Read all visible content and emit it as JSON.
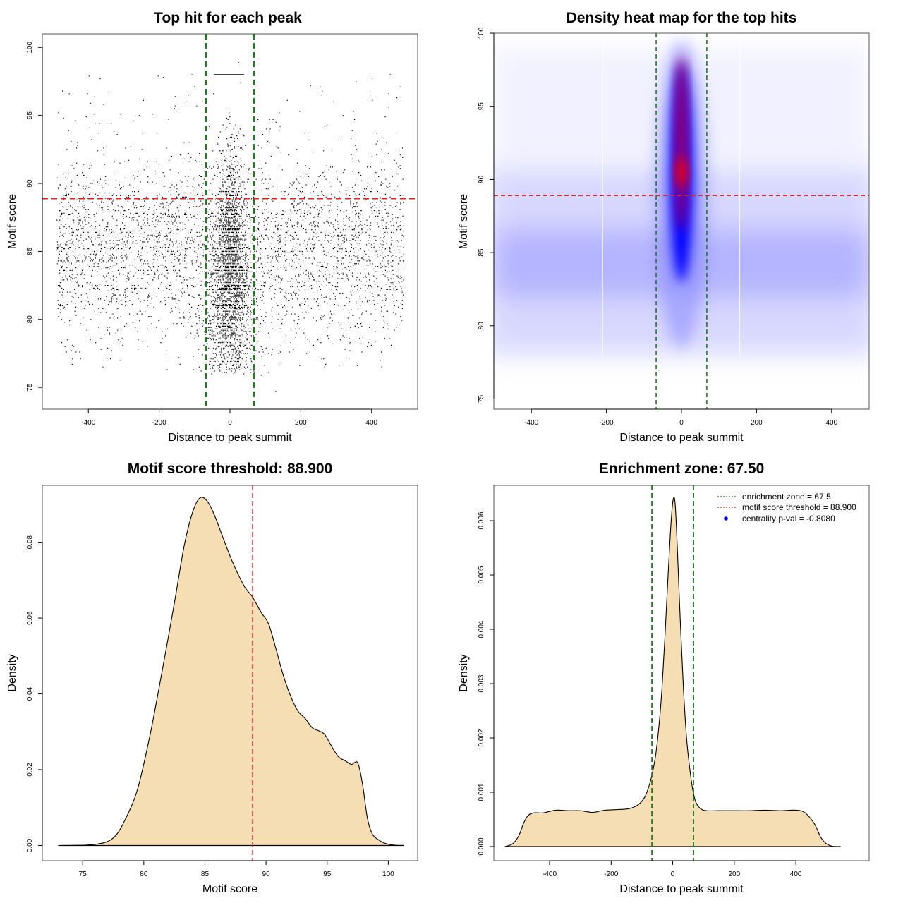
{
  "chart_data": [
    {
      "id": "top-hit-scatter",
      "type": "scatter",
      "title": "Top hit for each peak",
      "xlabel": "Distance to peak summit",
      "ylabel": "Motif score",
      "xlim": [
        -530,
        530
      ],
      "ylim": [
        73.4,
        101
      ],
      "xticks": [
        -400,
        -200,
        0,
        200,
        400
      ],
      "yticks": [
        75,
        80,
        85,
        90,
        95,
        100
      ],
      "x_range_of_points": [
        -490,
        490
      ],
      "background_score_distribution": {
        "center": 85,
        "spread": 3.2,
        "min": 74.7,
        "max": 99.8
      },
      "central_cluster": {
        "center_distance": 0,
        "spread": 18,
        "score_range": [
          76,
          99.9
        ]
      },
      "vlines": {
        "values": [
          -67.5,
          67.5
        ],
        "color": "#1e7b1e",
        "style": "dashed"
      },
      "hline": {
        "value": 88.9,
        "color": "#d62728",
        "style": "dashed"
      },
      "point_color": "#000000",
      "grid": false
    },
    {
      "id": "density-heatmap",
      "type": "heatmap",
      "title": "Density heat map for the top hits",
      "xlabel": "Distance to peak summit",
      "ylabel": "Motif score",
      "xlim": [
        -500,
        500
      ],
      "ylim": [
        74.3,
        100
      ],
      "xticks": [
        -400,
        -200,
        0,
        200,
        400
      ],
      "yticks": [
        75,
        80,
        85,
        90,
        95,
        100
      ],
      "colors": [
        "#ffffff",
        "#0000ff",
        "#ff0000"
      ],
      "hotspot": {
        "x": 0,
        "y_center": 90.5,
        "y_range": [
          83,
          98
        ]
      },
      "background_band": {
        "y_center": 84.3,
        "y_range": [
          78,
          91
        ]
      },
      "vlines": {
        "values": [
          -67.5,
          67.5
        ],
        "color": "#1e7b1e",
        "style": "dashed"
      },
      "hline": {
        "value": 88.9,
        "color": "#d62728",
        "style": "dashed"
      },
      "grid": false
    },
    {
      "id": "motif-score-density",
      "type": "area",
      "title": "Motif score threshold: 88.900",
      "xlabel": "Motif score",
      "ylabel": "Density",
      "xlim": [
        71.7,
        102.4
      ],
      "ylim": [
        -0.004,
        0.095
      ],
      "xticks": [
        75,
        80,
        85,
        90,
        95,
        100
      ],
      "yticks": [
        0.0,
        0.02,
        0.04,
        0.06,
        0.08
      ],
      "ytick_labels": [
        "0.00",
        "0.02",
        "0.04",
        "0.06",
        "0.08"
      ],
      "x": [
        73.0,
        76.0,
        77.5,
        78.5,
        79.5,
        80.5,
        81.5,
        82.5,
        83.3,
        84.0,
        84.6,
        85.2,
        85.8,
        86.5,
        87.3,
        88.2,
        88.9,
        89.6,
        90.2,
        90.8,
        91.4,
        92.0,
        92.6,
        93.2,
        93.8,
        94.3,
        94.8,
        95.3,
        95.9,
        96.5,
        97.0,
        97.5,
        97.9,
        98.3,
        98.7,
        99.2,
        99.8,
        100.5,
        101.3
      ],
      "y": [
        0.0,
        0.0003,
        0.002,
        0.007,
        0.015,
        0.029,
        0.046,
        0.064,
        0.079,
        0.088,
        0.0917,
        0.0908,
        0.087,
        0.081,
        0.0745,
        0.0685,
        0.0655,
        0.0615,
        0.0585,
        0.052,
        0.045,
        0.0395,
        0.0355,
        0.0335,
        0.031,
        0.0303,
        0.0293,
        0.0265,
        0.0235,
        0.0223,
        0.0214,
        0.0218,
        0.016,
        0.007,
        0.003,
        0.0015,
        0.0005,
        0.0001,
        0.0
      ],
      "fill_color": "#f5deb3",
      "line_color": "#000000",
      "vline": {
        "value": 88.9,
        "color": "#d62728",
        "style": "dashed"
      },
      "grid": false
    },
    {
      "id": "distance-density",
      "type": "area",
      "title": "Enrichment zone: 67.50",
      "xlabel": "Distance to peak summit",
      "ylabel": "Density",
      "xlim": [
        -581,
        638
      ],
      "ylim": [
        -0.00026,
        0.00665
      ],
      "xticks": [
        -400,
        -200,
        0,
        200,
        400
      ],
      "yticks": [
        0.0,
        0.001,
        0.002,
        0.003,
        0.004,
        0.005,
        0.006
      ],
      "ytick_labels": [
        "0.000",
        "0.001",
        "0.002",
        "0.003",
        "0.004",
        "0.005",
        "0.006"
      ],
      "x": [
        -545,
        -520,
        -500,
        -485,
        -470,
        -450,
        -420,
        -380,
        -340,
        -300,
        -260,
        -220,
        -180,
        -140,
        -110,
        -90,
        -75,
        -65,
        -55,
        -45,
        -35,
        -25,
        -15,
        -5,
        2,
        8,
        15,
        25,
        35,
        45,
        55,
        65,
        75,
        90,
        110,
        150,
        200,
        250,
        300,
        350,
        400,
        430,
        460,
        480,
        495,
        510,
        525,
        545
      ],
      "y": [
        0.0,
        5e-05,
        0.0002,
        0.00042,
        0.00057,
        0.00062,
        0.00062,
        0.00067,
        0.00066,
        0.00066,
        0.00063,
        0.00067,
        0.00068,
        0.0007,
        0.00078,
        0.00092,
        0.00115,
        0.00138,
        0.0017,
        0.0022,
        0.0029,
        0.0039,
        0.005,
        0.006,
        0.0064,
        0.0063,
        0.0055,
        0.0041,
        0.0029,
        0.002,
        0.00145,
        0.00105,
        0.00082,
        0.0007,
        0.00066,
        0.00066,
        0.00066,
        0.00066,
        0.00067,
        0.00066,
        0.00067,
        0.00062,
        0.00042,
        0.00018,
        7e-05,
        2e-05,
        0.0,
        0.0
      ],
      "fill_color": "#f5deb3",
      "line_color": "#000000",
      "vlines": {
        "values": [
          -67.5,
          67.5
        ],
        "color": "#1e7b1e",
        "style": "dashed"
      },
      "legend": {
        "placement": "top-right",
        "entries": [
          {
            "label": "enrichment zone = 67.5",
            "symbol": "dotted-line",
            "color": "#1e7b1e"
          },
          {
            "label": "motif score threshold = 88.900",
            "symbol": "dotted-line",
            "color": "#d62728"
          },
          {
            "label": "centrality p-val = -0.8080",
            "symbol": "dot",
            "color": "#0000ff"
          }
        ]
      },
      "grid": false
    }
  ]
}
